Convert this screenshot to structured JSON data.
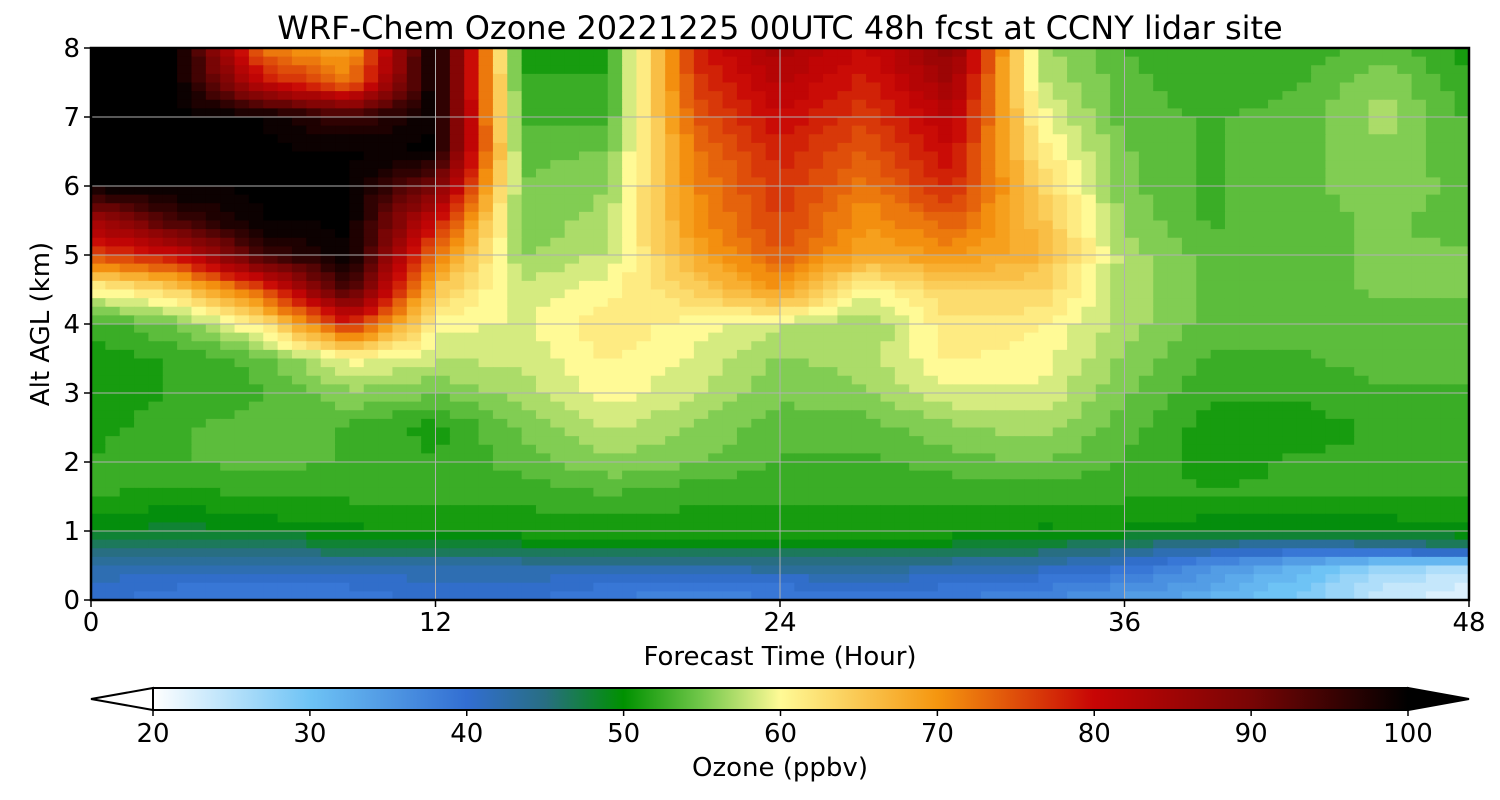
{
  "chart_data": {
    "type": "heatmap",
    "title": "WRF-Chem Ozone  20221225 00UTC 48h fcst at CCNY lidar site",
    "xlabel": "Forecast Time (Hour)",
    "ylabel": "Alt AGL (km)",
    "xlim": [
      0,
      48
    ],
    "ylim": [
      0,
      8
    ],
    "xticks": [
      "0",
      "12",
      "24",
      "36",
      "48"
    ],
    "yticks": [
      "0",
      "1",
      "2",
      "3",
      "4",
      "5",
      "6",
      "7",
      "8"
    ],
    "grid": true,
    "colorbar": {
      "label": "Ozone  (ppbv)",
      "ticks": [
        "20",
        "30",
        "40",
        "50",
        "60",
        "70",
        "80",
        "90",
        "100"
      ],
      "range": [
        20,
        100
      ],
      "extend": "both"
    },
    "x_hours": [
      0,
      3,
      6,
      9,
      12,
      15,
      18,
      21,
      24,
      27,
      30,
      33,
      36,
      39,
      42,
      45,
      48
    ],
    "y_km": [
      0,
      0.25,
      0.5,
      0.75,
      1,
      1.5,
      2,
      2.5,
      3,
      3.5,
      4,
      4.5,
      5,
      5.5,
      6,
      6.5,
      7,
      7.5,
      8
    ],
    "ozone_ppbv": [
      [
        40,
        39,
        38,
        39,
        40,
        40,
        38,
        37,
        38,
        39,
        38,
        37,
        35,
        32,
        29,
        24,
        22
      ],
      [
        41,
        40,
        39,
        40,
        41,
        41,
        40,
        39,
        40,
        41,
        40,
        39,
        37,
        34,
        30,
        25,
        23
      ],
      [
        43,
        42,
        42,
        43,
        43,
        43,
        43,
        43,
        44,
        44,
        43,
        42,
        40,
        36,
        32,
        28,
        26
      ],
      [
        46,
        45,
        46,
        47,
        47,
        48,
        48,
        48,
        48,
        48,
        48,
        47,
        45,
        43,
        42,
        43,
        46
      ],
      [
        49,
        48,
        49,
        50,
        50,
        51,
        51,
        51,
        51,
        51,
        51,
        50,
        50,
        49,
        49,
        49,
        50
      ],
      [
        52,
        51,
        52,
        52,
        52,
        52,
        53,
        52,
        52,
        52,
        52,
        52,
        52,
        52,
        52,
        52,
        52
      ],
      [
        52,
        53,
        54,
        53,
        52,
        54,
        56,
        55,
        53,
        53,
        54,
        55,
        53,
        51,
        52,
        52,
        53
      ],
      [
        51,
        53,
        54,
        53,
        51,
        55,
        58,
        56,
        54,
        54,
        56,
        57,
        54,
        51,
        51,
        52,
        53
      ],
      [
        50,
        52,
        53,
        56,
        55,
        57,
        60,
        58,
        55,
        56,
        59,
        59,
        55,
        52,
        52,
        53,
        53
      ],
      [
        51,
        52,
        54,
        60,
        58,
        58,
        61,
        59,
        56,
        57,
        61,
        60,
        56,
        53,
        53,
        54,
        54
      ],
      [
        52,
        55,
        62,
        78,
        60,
        59,
        62,
        60,
        58,
        56,
        62,
        61,
        57,
        54,
        54,
        54,
        54
      ],
      [
        60,
        64,
        75,
        95,
        65,
        58,
        60,
        64,
        70,
        60,
        64,
        64,
        57,
        54,
        54,
        55,
        55
      ],
      [
        75,
        80,
        95,
        100,
        72,
        56,
        58,
        68,
        74,
        68,
        70,
        67,
        57,
        54,
        54,
        55,
        55
      ],
      [
        85,
        95,
        100,
        100,
        80,
        55,
        57,
        70,
        76,
        70,
        74,
        66,
        56,
        53,
        54,
        55,
        54
      ],
      [
        100,
        100,
        100,
        100,
        90,
        55,
        56,
        71,
        77,
        72,
        78,
        64,
        55,
        53,
        54,
        56,
        54
      ],
      [
        100,
        100,
        100,
        100,
        100,
        54,
        55,
        72,
        78,
        74,
        80,
        62,
        55,
        53,
        54,
        56,
        53
      ],
      [
        100,
        100,
        100,
        95,
        100,
        53,
        53,
        74,
        80,
        76,
        82,
        60,
        54,
        53,
        54,
        57,
        53
      ],
      [
        100,
        100,
        80,
        72,
        100,
        52,
        52,
        76,
        82,
        78,
        85,
        58,
        54,
        52,
        53,
        56,
        52
      ],
      [
        100,
        100,
        72,
        68,
        100,
        51,
        51,
        78,
        84,
        80,
        88,
        57,
        53,
        52,
        52,
        54,
        51
      ]
    ]
  }
}
